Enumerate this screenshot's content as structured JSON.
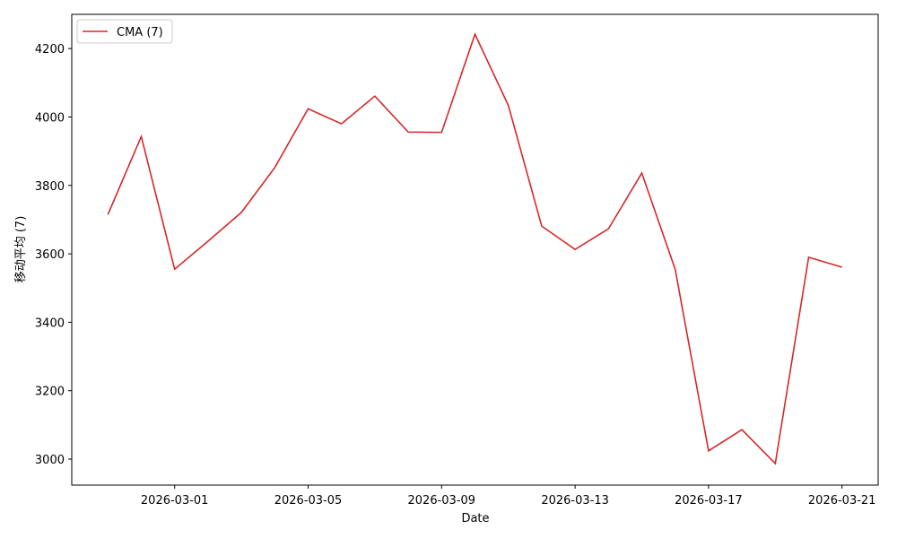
{
  "chart_data": {
    "type": "line",
    "x_label": "Date",
    "y_label": "移动平均 (7)",
    "x": [
      "2026-02-27",
      "2026-02-28",
      "2026-03-01",
      "2026-03-02",
      "2026-03-03",
      "2026-03-04",
      "2026-03-05",
      "2026-03-06",
      "2026-03-07",
      "2026-03-08",
      "2026-03-09",
      "2026-03-10",
      "2026-03-11",
      "2026-03-12",
      "2026-03-13",
      "2026-03-14",
      "2026-03-15",
      "2026-03-16",
      "2026-03-17",
      "2026-03-18",
      "2026-03-19",
      "2026-03-20",
      "2026-03-21"
    ],
    "series": [
      {
        "name": "CMA (7)",
        "color": "#d62728",
        "values": [
          3715,
          3943,
          3555,
          3637,
          3721,
          3852,
          4024,
          3980,
          4061,
          3956,
          3955,
          4242,
          4034,
          3681,
          3613,
          3673,
          3836,
          3555,
          3024,
          3086,
          2987,
          3590,
          3561
        ]
      }
    ],
    "xlim": [
      "2026-02-25T22:00",
      "2026-03-22T02:00"
    ],
    "xticks": [
      "2026-03-01",
      "2026-03-05",
      "2026-03-09",
      "2026-03-13",
      "2026-03-17",
      "2026-03-21"
    ],
    "ylim": [
      2924,
      4300
    ],
    "yticks": [
      3000,
      3200,
      3400,
      3600,
      3800,
      4000,
      4200
    ],
    "legend": "upper left",
    "grid": false
  }
}
